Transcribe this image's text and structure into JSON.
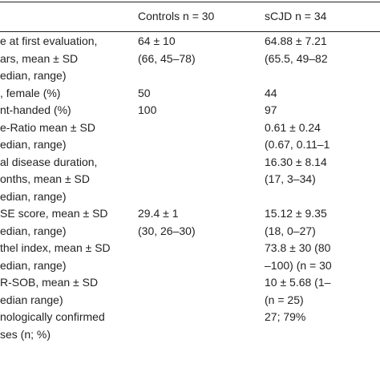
{
  "table": {
    "header": [
      "",
      "Controls n = 30",
      "sCJD n = 34"
    ],
    "rows": [
      [
        "e at first evaluation,",
        "64 ± 10",
        "64.88 ± 7.21"
      ],
      [
        "ars, mean ± SD",
        "(66, 45–78)",
        "(65.5, 49–82"
      ],
      [
        "edian, range)",
        "",
        ""
      ],
      [
        ", female (%)",
        "50",
        "44"
      ],
      [
        "nt-handed (%)",
        "100",
        "97"
      ],
      [
        "e-Ratio mean ± SD",
        "",
        "0.61 ± 0.24"
      ],
      [
        "edian, range)",
        "",
        "(0.67, 0.11–1"
      ],
      [
        "al disease duration,",
        "",
        "16.30 ± 8.14"
      ],
      [
        "onths, mean ± SD",
        "",
        "(17, 3–34)"
      ],
      [
        "edian, range)",
        "",
        ""
      ],
      [
        "SE score, mean ± SD",
        "29.4 ± 1",
        "15.12 ± 9.35"
      ],
      [
        "edian, range)",
        "(30, 26–30)",
        "(18, 0–27)"
      ],
      [
        "thel index, mean ± SD",
        "",
        "73.8 ± 30 (80"
      ],
      [
        "edian, range)",
        "",
        "–100) (n = 30"
      ],
      [
        "R-SOB, mean ± SD",
        "",
        "10 ± 5.68 (1–"
      ],
      [
        "edian range)",
        "",
        "(n = 25)"
      ],
      [
        "nologically confirmed",
        "",
        "27; 79%"
      ],
      [
        "ses (n; %)",
        "",
        ""
      ]
    ]
  }
}
